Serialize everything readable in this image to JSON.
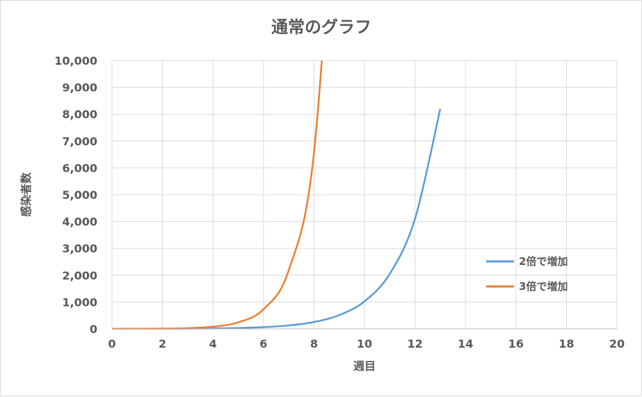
{
  "chart_data": {
    "type": "line",
    "title": "通常のグラフ",
    "xlabel": "週目",
    "ylabel": "感染者数",
    "xlim": [
      0,
      20
    ],
    "ylim": [
      0,
      10000
    ],
    "x_ticks": [
      "0",
      "2",
      "4",
      "6",
      "8",
      "10",
      "12",
      "14",
      "16",
      "18",
      "20"
    ],
    "y_ticks": [
      "0",
      "1,000",
      "2,000",
      "3,000",
      "4,000",
      "5,000",
      "6,000",
      "7,000",
      "8,000",
      "9,000",
      "10,000"
    ],
    "grid": true,
    "legend_position": "right",
    "series": [
      {
        "name": "2倍で増加",
        "color": "#5b9bd5",
        "x": [
          0,
          1,
          2,
          3,
          4,
          5,
          6,
          7,
          8,
          9,
          10,
          11,
          12,
          13
        ],
        "y": [
          1,
          2,
          4,
          8,
          16,
          32,
          64,
          128,
          256,
          512,
          1024,
          2048,
          4096,
          8192
        ]
      },
      {
        "name": "3倍で増加",
        "color": "#ed7d31",
        "x": [
          0,
          1,
          2,
          3,
          4,
          5,
          6,
          7,
          8,
          9
        ],
        "y": [
          1,
          3,
          9,
          27,
          81,
          243,
          729,
          2187,
          6561,
          19683
        ]
      }
    ]
  }
}
